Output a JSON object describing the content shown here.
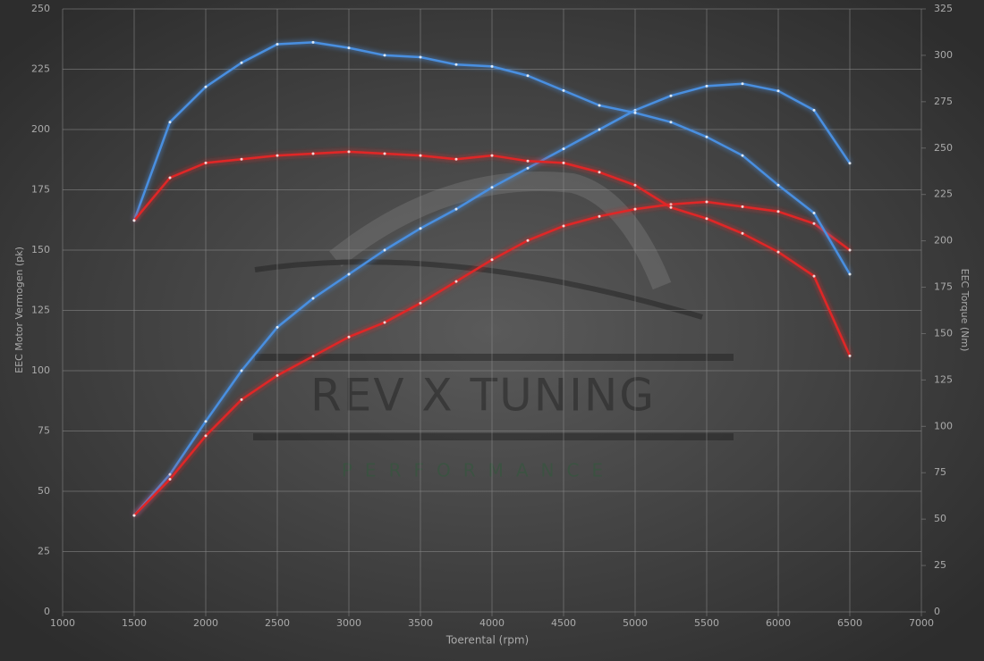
{
  "chart_data": {
    "type": "line",
    "xlabel": "Toerental (rpm)",
    "ylabel": "EEC Motor Vermogen (pk)",
    "y2label": "EEC Torque (Nm)",
    "watermark": {
      "text": "REV X TUNING",
      "subtext": "PERFORMANCE"
    },
    "x": [
      1500,
      1750,
      2000,
      2250,
      2500,
      2750,
      3000,
      3250,
      3500,
      3750,
      4000,
      4250,
      4500,
      4750,
      5000,
      5250,
      5500,
      5750,
      6000,
      6250,
      6500
    ],
    "series": [
      {
        "color": "#4a8fe0",
        "values": [
          40,
          57,
          79,
          100,
          118,
          130,
          140,
          150,
          159,
          167,
          176,
          184,
          192,
          200,
          208,
          214,
          218,
          219,
          216,
          208,
          186
        ]
      },
      {
        "color": "#e02828",
        "values": [
          40,
          55,
          73,
          88,
          98,
          106,
          114,
          120,
          128,
          137,
          146,
          154,
          160,
          164,
          167,
          169,
          170,
          168,
          166,
          161,
          150
        ]
      },
      {
        "color": "#4a8fe0",
        "axis": "y2",
        "values": [
          211,
          264,
          283,
          296,
          306,
          307,
          304,
          300,
          299,
          295,
          294,
          289,
          281,
          273,
          269,
          264,
          256,
          246,
          230,
          215,
          182
        ]
      },
      {
        "color": "#e02828",
        "axis": "y2",
        "values": [
          211,
          234,
          242,
          244,
          246,
          247,
          248,
          247,
          246,
          244,
          246,
          243,
          242,
          237,
          230,
          218,
          212,
          204,
          194,
          181,
          138
        ]
      }
    ],
    "xlim": [
      1000,
      7000
    ],
    "xticks": [
      1000,
      1500,
      2000,
      2500,
      3000,
      3500,
      4000,
      4500,
      5000,
      5500,
      6000,
      6500,
      7000
    ],
    "ylim": [
      0,
      250
    ],
    "yticks": [
      0,
      25,
      50,
      75,
      100,
      125,
      150,
      175,
      200,
      225,
      250
    ],
    "y2lim": [
      0,
      325
    ],
    "y2ticks": [
      0,
      25,
      50,
      75,
      100,
      125,
      150,
      175,
      200,
      225,
      250,
      275,
      300,
      325
    ],
    "grid": true
  }
}
